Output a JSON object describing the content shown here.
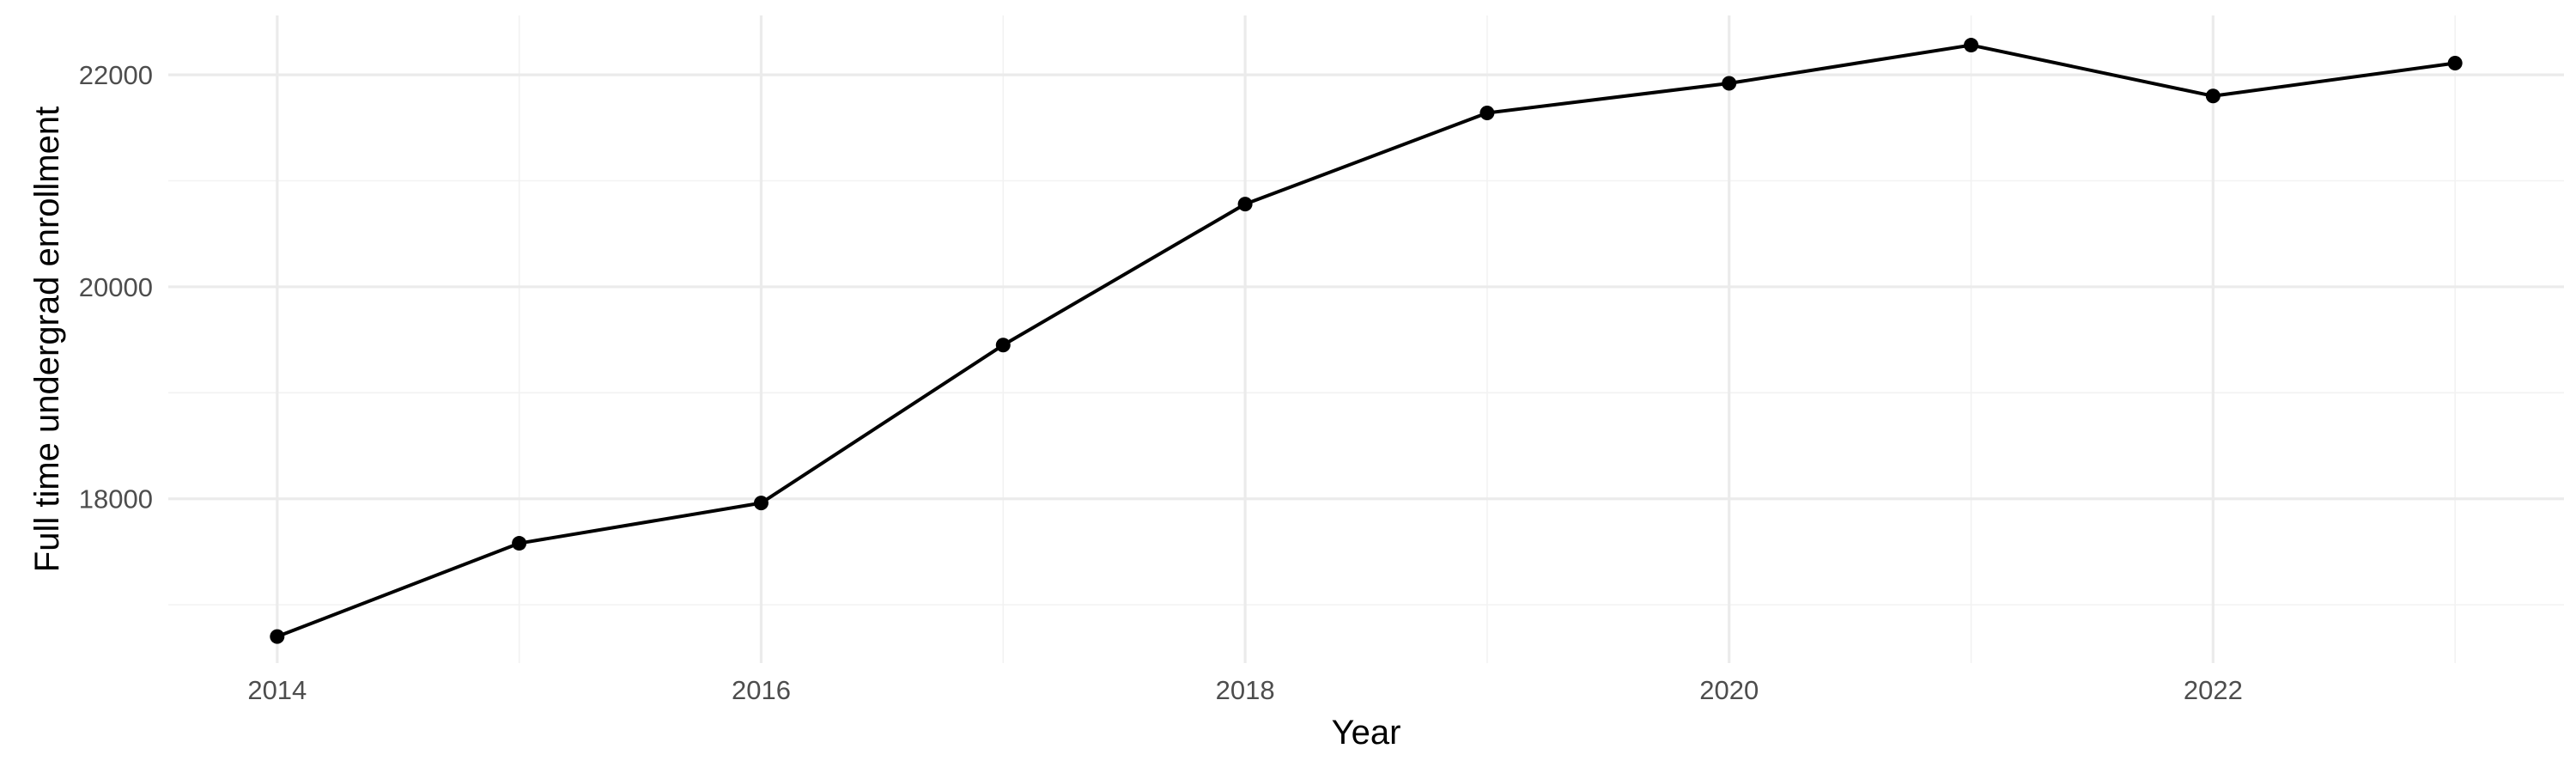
{
  "chart_data": {
    "type": "line",
    "title": "",
    "xlabel": "Year",
    "ylabel": "Full time undergrad enrollment",
    "x": [
      2014,
      2015,
      2016,
      2017,
      2018,
      2019,
      2020,
      2021,
      2022,
      2023
    ],
    "series": [
      {
        "values": [
          16700,
          17580,
          17960,
          19450,
          20780,
          21640,
          21920,
          22280,
          21800,
          22110
        ]
      }
    ],
    "xlim": [
      2013.55,
      2023.45
    ],
    "ylim": [
      16450,
      22560
    ],
    "xticks": [
      2014,
      2016,
      2018,
      2020,
      2022
    ],
    "xtick_labels": [
      "2014",
      "2016",
      "2018",
      "2020",
      "2022"
    ],
    "yticks": [
      18000,
      20000,
      22000
    ],
    "ytick_labels": [
      "18000",
      "20000",
      "22000"
    ],
    "grid": true,
    "legend": "none",
    "colors": {
      "line": "#000000",
      "points": "#000000",
      "grid_major": "#ebebeb",
      "grid_minor": "#f2f2f2",
      "tick_text": "#4d4d4d"
    },
    "markers": "filled-circle"
  }
}
